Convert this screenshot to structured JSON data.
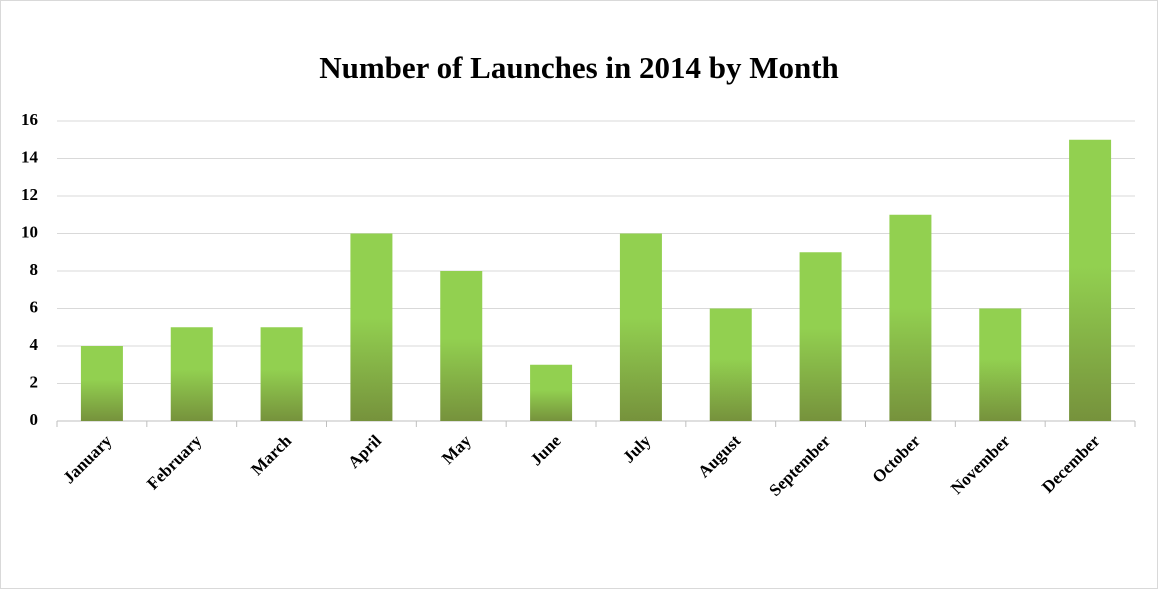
{
  "chart_data": {
    "type": "bar",
    "title": "Number of Launches in 2014 by Month",
    "categories": [
      "January",
      "February",
      "March",
      "April",
      "May",
      "June",
      "July",
      "August",
      "September",
      "October",
      "November",
      "December"
    ],
    "values": [
      4,
      5,
      5,
      10,
      8,
      3,
      10,
      6,
      9,
      11,
      6,
      15
    ],
    "color": "#92d050",
    "ylim": [
      0,
      16
    ],
    "yticks": [
      0,
      2,
      4,
      6,
      8,
      10,
      12,
      14,
      16
    ],
    "grid": true
  }
}
